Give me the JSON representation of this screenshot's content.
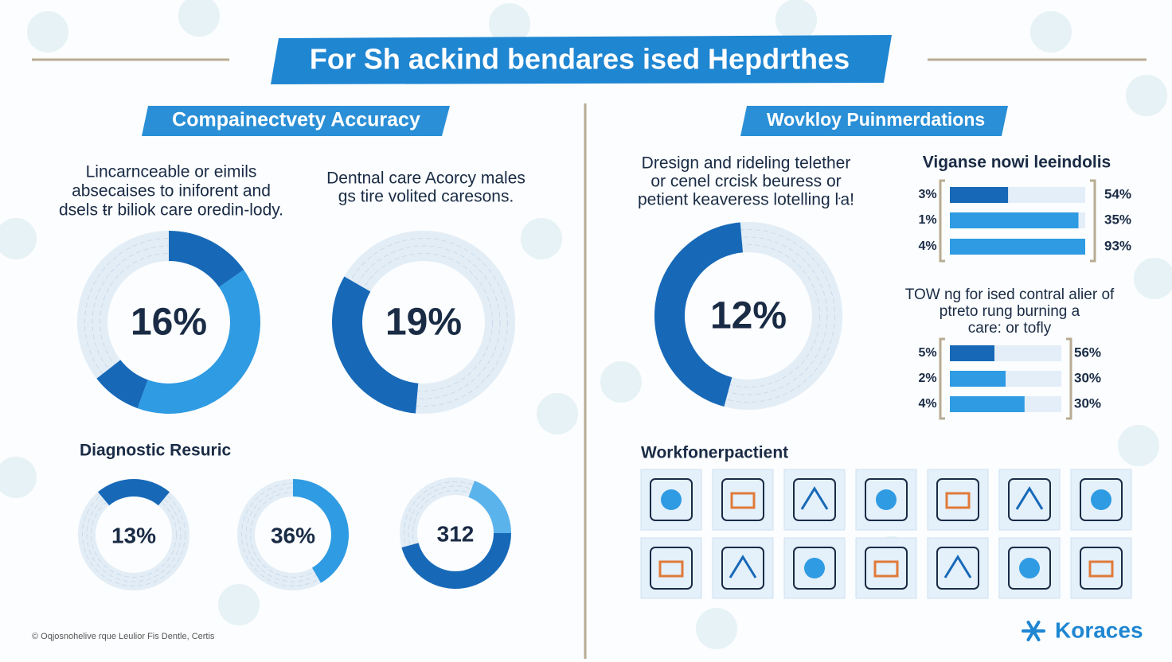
{
  "title": "For Sh ackind bendares ised Hepdrthes",
  "left": {
    "heading": "Compainectvety Accuracy",
    "text_1": [
      "Lincarnceable or eimils",
      "absecaises to iniforent and",
      "dsels ŧr biliok care oredin-lody."
    ],
    "text_2": [
      "Dentnal care Acorcy males",
      "gs tire volited caresons."
    ],
    "donuts": [
      "16%",
      "19%"
    ],
    "sub_heading": "Diagnostic Resuric",
    "small_donuts": [
      "13%",
      "36%",
      "312"
    ],
    "footer": "© Oqjosnohelive rque Leulior Fis Dentle, Certis"
  },
  "right": {
    "heading": "Wovkloy Puinmerdations",
    "text": [
      "Dresign and rideling telether",
      "or cenel crcisk beuress or",
      "petient keaveress lotelling ŀa!"
    ],
    "donut": "12%",
    "bars_1": {
      "title": "Viganse nowi leeindolis",
      "left_labels": [
        "3%",
        "1%",
        "4%"
      ],
      "right_labels": [
        "54%",
        "35%",
        "93%"
      ]
    },
    "bars_2": {
      "title": [
        "TOW ng for ised contral alier of",
        "ptreto rung burning a",
        "care: or tofly"
      ],
      "left_labels": [
        "5%",
        "2%",
        "4%"
      ],
      "right_labels": [
        "56%",
        "30%",
        "30%"
      ]
    },
    "icons_heading": "Workfonerpactient",
    "logo": "Koraces"
  }
}
